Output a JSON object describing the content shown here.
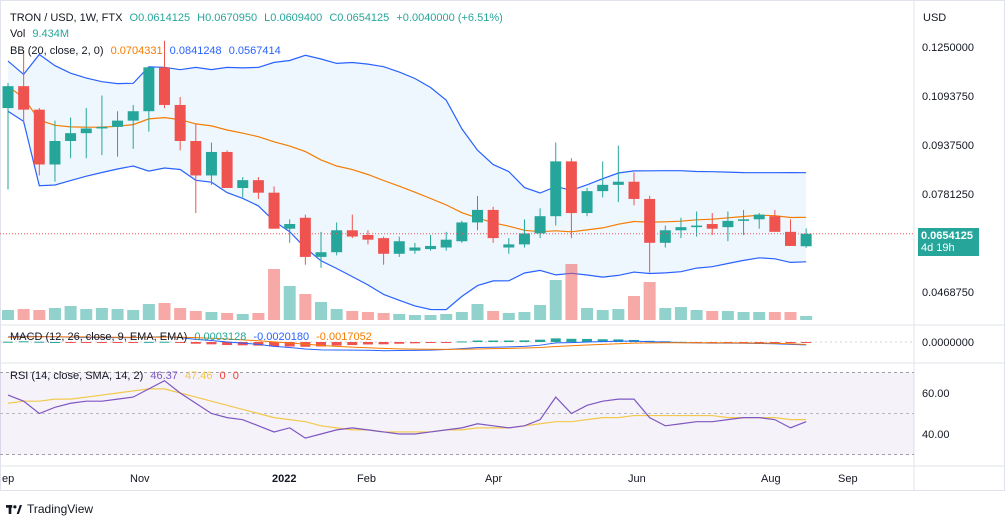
{
  "header": {
    "symbol": "TRON / USD, 1W, FTX",
    "open": "O0.0614125",
    "high": "H0.0670950",
    "low": "L0.0609400",
    "close": "C0.0654125",
    "change": "+0.0040000 (+6.51%)",
    "currency": "USD"
  },
  "volume_legend": {
    "label": "Vol",
    "value": "9.434M"
  },
  "bb_legend": {
    "label": "BB (20, close, 2, 0)",
    "basis": "0.0704331",
    "upper": "0.0841248",
    "lower": "0.0567414"
  },
  "macd_legend": {
    "label": "MACD (12, 26, close, 9, EMA, EMA)",
    "hist": "0.0003128",
    "macd": "-0.0020180",
    "signal": "-0.0017052"
  },
  "rsi_legend": {
    "label": "RSI (14, close, SMA, 14, 2)",
    "rsi": "46.37",
    "rsi_ma": "47.46",
    "extra1": "0",
    "extra2": "0"
  },
  "price_tag": {
    "price": "0.0654125",
    "countdown": "4d 19h"
  },
  "branding": "TradingView",
  "colors": {
    "up": "#26a69a",
    "down": "#ef5350",
    "bb_basis": "#f57c00",
    "bb_band": "#2962ff",
    "rsi_line": "#7e57c2",
    "rsi_ma": "#f2c94c"
  },
  "chart_data": [
    {
      "type": "candlestick",
      "title": "TRON / USD, 1W, FTX",
      "price_axis_ticks": [
        "0.1250000",
        "0.1093750",
        "0.0937500",
        "0.0781250",
        "0.0468750"
      ],
      "x_axis_ticks": [
        "ep",
        "Nov",
        "2022",
        "Feb",
        "Apr",
        "Jun",
        "Aug",
        "Sep"
      ],
      "last_price": 0.0654125,
      "candles": [
        {
          "o": 0.1055,
          "h": 0.1135,
          "l": 0.0795,
          "c": 0.1125
        },
        {
          "o": 0.1125,
          "h": 0.124,
          "l": 0.1005,
          "c": 0.105
        },
        {
          "o": 0.105,
          "h": 0.1055,
          "l": 0.084,
          "c": 0.0875
        },
        {
          "o": 0.0875,
          "h": 0.1015,
          "l": 0.082,
          "c": 0.095
        },
        {
          "o": 0.095,
          "h": 0.1025,
          "l": 0.0895,
          "c": 0.0975
        },
        {
          "o": 0.0975,
          "h": 0.1055,
          "l": 0.0895,
          "c": 0.099
        },
        {
          "o": 0.099,
          "h": 0.1095,
          "l": 0.0905,
          "c": 0.0995
        },
        {
          "o": 0.0995,
          "h": 0.1045,
          "l": 0.09,
          "c": 0.1015
        },
        {
          "o": 0.1015,
          "h": 0.1065,
          "l": 0.0925,
          "c": 0.1045
        },
        {
          "o": 0.1045,
          "h": 0.118,
          "l": 0.098,
          "c": 0.1185
        },
        {
          "o": 0.1185,
          "h": 0.127,
          "l": 0.1055,
          "c": 0.1065
        },
        {
          "o": 0.1065,
          "h": 0.109,
          "l": 0.092,
          "c": 0.095
        },
        {
          "o": 0.095,
          "h": 0.1005,
          "l": 0.072,
          "c": 0.084
        },
        {
          "o": 0.084,
          "h": 0.0945,
          "l": 0.081,
          "c": 0.0915
        },
        {
          "o": 0.0915,
          "h": 0.092,
          "l": 0.0805,
          "c": 0.08
        },
        {
          "o": 0.08,
          "h": 0.0835,
          "l": 0.077,
          "c": 0.0825
        },
        {
          "o": 0.0825,
          "h": 0.0835,
          "l": 0.0765,
          "c": 0.0785
        },
        {
          "o": 0.0785,
          "h": 0.0805,
          "l": 0.0675,
          "c": 0.067
        },
        {
          "o": 0.067,
          "h": 0.07,
          "l": 0.0625,
          "c": 0.0685
        },
        {
          "o": 0.0705,
          "h": 0.0715,
          "l": 0.0555,
          "c": 0.058
        },
        {
          "o": 0.058,
          "h": 0.066,
          "l": 0.0545,
          "c": 0.0595
        },
        {
          "o": 0.0595,
          "h": 0.069,
          "l": 0.0585,
          "c": 0.0665
        },
        {
          "o": 0.0665,
          "h": 0.0715,
          "l": 0.064,
          "c": 0.0645
        },
        {
          "o": 0.065,
          "h": 0.0665,
          "l": 0.062,
          "c": 0.0635
        },
        {
          "o": 0.064,
          "h": 0.0645,
          "l": 0.0555,
          "c": 0.059
        },
        {
          "o": 0.059,
          "h": 0.0645,
          "l": 0.058,
          "c": 0.063
        },
        {
          "o": 0.06,
          "h": 0.0625,
          "l": 0.059,
          "c": 0.061
        },
        {
          "o": 0.0605,
          "h": 0.065,
          "l": 0.06,
          "c": 0.0615
        },
        {
          "o": 0.061,
          "h": 0.066,
          "l": 0.06,
          "c": 0.0635
        },
        {
          "o": 0.063,
          "h": 0.0695,
          "l": 0.0625,
          "c": 0.069
        },
        {
          "o": 0.069,
          "h": 0.0775,
          "l": 0.0665,
          "c": 0.073
        },
        {
          "o": 0.073,
          "h": 0.074,
          "l": 0.0625,
          "c": 0.064
        },
        {
          "o": 0.061,
          "h": 0.064,
          "l": 0.059,
          "c": 0.062
        },
        {
          "o": 0.062,
          "h": 0.07,
          "l": 0.061,
          "c": 0.0655
        },
        {
          "o": 0.0655,
          "h": 0.0735,
          "l": 0.064,
          "c": 0.071
        },
        {
          "o": 0.071,
          "h": 0.0945,
          "l": 0.068,
          "c": 0.0885
        },
        {
          "o": 0.0885,
          "h": 0.0895,
          "l": 0.064,
          "c": 0.072
        },
        {
          "o": 0.072,
          "h": 0.08,
          "l": 0.071,
          "c": 0.079
        },
        {
          "o": 0.079,
          "h": 0.0885,
          "l": 0.077,
          "c": 0.081
        },
        {
          "o": 0.081,
          "h": 0.0935,
          "l": 0.0755,
          "c": 0.082
        },
        {
          "o": 0.082,
          "h": 0.085,
          "l": 0.0745,
          "c": 0.0765
        },
        {
          "o": 0.0765,
          "h": 0.0775,
          "l": 0.053,
          "c": 0.0625
        },
        {
          "o": 0.0625,
          "h": 0.068,
          "l": 0.061,
          "c": 0.0665
        },
        {
          "o": 0.0665,
          "h": 0.0705,
          "l": 0.064,
          "c": 0.0675
        },
        {
          "o": 0.0675,
          "h": 0.0725,
          "l": 0.0645,
          "c": 0.068
        },
        {
          "o": 0.0685,
          "h": 0.072,
          "l": 0.065,
          "c": 0.067
        },
        {
          "o": 0.0675,
          "h": 0.0725,
          "l": 0.063,
          "c": 0.0695
        },
        {
          "o": 0.0695,
          "h": 0.073,
          "l": 0.065,
          "c": 0.07
        },
        {
          "o": 0.07,
          "h": 0.072,
          "l": 0.067,
          "c": 0.0715
        },
        {
          "o": 0.071,
          "h": 0.073,
          "l": 0.0665,
          "c": 0.066
        },
        {
          "o": 0.066,
          "h": 0.07,
          "l": 0.0615,
          "c": 0.0615
        },
        {
          "o": 0.0614,
          "h": 0.0671,
          "l": 0.0609,
          "c": 0.0654
        }
      ],
      "volume": [
        1.0,
        1.1,
        1.0,
        1.2,
        1.4,
        1.1,
        1.2,
        1.1,
        1.0,
        1.6,
        1.7,
        1.2,
        0.9,
        0.8,
        0.7,
        0.6,
        0.7,
        5.1,
        3.4,
        2.6,
        1.8,
        1.1,
        0.9,
        0.8,
        0.7,
        0.6,
        0.5,
        0.5,
        0.6,
        0.8,
        1.6,
        0.9,
        0.7,
        0.8,
        1.5,
        4.0,
        5.6,
        1.2,
        1.0,
        1.1,
        2.4,
        3.8,
        1.2,
        1.3,
        1.0,
        0.9,
        0.9,
        0.8,
        0.8,
        0.8,
        0.8,
        0.4
      ]
    },
    {
      "type": "line",
      "title": "MACD (12, 26, close, 9, EMA, EMA)",
      "y_axis_ticks": [
        "0.0000000"
      ],
      "series": [
        {
          "name": "MACD",
          "values": [
            0.0035,
            0.004,
            0.0038,
            0.0036,
            0.0034,
            0.0032,
            0.003,
            0.003,
            0.003,
            0.0034,
            0.0036,
            0.003,
            0.0018,
            0.001,
            0.0,
            -0.0008,
            -0.0016,
            -0.003,
            -0.0038,
            -0.0048,
            -0.0054,
            -0.0055,
            -0.0056,
            -0.0057,
            -0.006,
            -0.0059,
            -0.0058,
            -0.0056,
            -0.0052,
            -0.0046,
            -0.0038,
            -0.0036,
            -0.0034,
            -0.003,
            -0.0022,
            -0.0006,
            -0.0004,
            0.0,
            0.0003,
            0.0006,
            0.0006,
            0.0002,
            0.0,
            -0.0004,
            -0.0006,
            -0.0008,
            -0.0008,
            -0.0009,
            -0.001,
            -0.0012,
            -0.0016,
            -0.002
          ]
        },
        {
          "name": "Signal",
          "values": [
            0.0033,
            0.0035,
            0.0036,
            0.0036,
            0.0035,
            0.0035,
            0.0034,
            0.0033,
            0.0032,
            0.0033,
            0.0034,
            0.0033,
            0.003,
            0.0026,
            0.0021,
            0.0015,
            0.0009,
            0.0001,
            -0.0007,
            -0.0015,
            -0.0023,
            -0.003,
            -0.0035,
            -0.004,
            -0.0044,
            -0.0047,
            -0.0049,
            -0.005,
            -0.0051,
            -0.005,
            -0.0048,
            -0.0046,
            -0.0044,
            -0.0041,
            -0.0038,
            -0.0031,
            -0.0026,
            -0.0021,
            -0.0016,
            -0.0012,
            -0.0008,
            -0.0006,
            -0.0005,
            -0.0005,
            -0.0005,
            -0.0006,
            -0.0006,
            -0.0007,
            -0.0008,
            -0.0009,
            -0.0012,
            -0.0017
          ]
        }
      ]
    },
    {
      "type": "line",
      "title": "RSI (14, close, SMA, 14, 2)",
      "y_axis_ticks": [
        "60.00",
        "40.00"
      ],
      "ylim": [
        30,
        70
      ],
      "series": [
        {
          "name": "RSI",
          "values": [
            59,
            56,
            50,
            53,
            55,
            56,
            56,
            57,
            58,
            62,
            66,
            60,
            55,
            50,
            48,
            47,
            44,
            41,
            43,
            38,
            40,
            42,
            43,
            42,
            41,
            40,
            40,
            41,
            42,
            43,
            45,
            44,
            43,
            44,
            47,
            58,
            50,
            54,
            56,
            57,
            57,
            48,
            44,
            45,
            46,
            46,
            47,
            48,
            48,
            47,
            43,
            46
          ]
        },
        {
          "name": "RSI MA",
          "values": [
            55,
            56,
            56,
            57,
            57,
            58,
            59,
            60,
            61,
            62,
            62,
            60,
            58,
            56,
            54,
            52,
            50,
            48,
            47,
            46,
            44,
            43,
            42,
            42,
            41,
            41,
            41,
            41,
            42,
            42,
            43,
            43,
            43,
            44,
            45,
            46,
            46,
            47,
            48,
            48,
            49,
            49,
            49,
            49,
            49,
            49,
            48,
            48,
            48,
            48,
            47,
            47
          ]
        }
      ]
    }
  ]
}
